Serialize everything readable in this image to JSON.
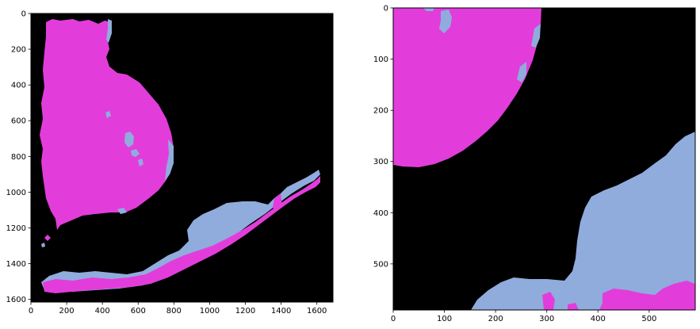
{
  "colors": {
    "background": "#000000",
    "class_a": "#e23ddb",
    "class_b": "#90acdc"
  },
  "panels": [
    {
      "id": "left",
      "x_ticks": [
        "0",
        "200",
        "400",
        "600",
        "800",
        "1000",
        "1200",
        "1400",
        "1600"
      ],
      "y_ticks": [
        "0",
        "200",
        "400",
        "600",
        "800",
        "1000",
        "1200",
        "1400",
        "1600"
      ]
    },
    {
      "id": "right",
      "x_ticks": [
        "0",
        "100",
        "200",
        "300",
        "400",
        "500"
      ],
      "y_ticks": [
        "0",
        "100",
        "200",
        "300",
        "400",
        "500"
      ]
    }
  ]
}
